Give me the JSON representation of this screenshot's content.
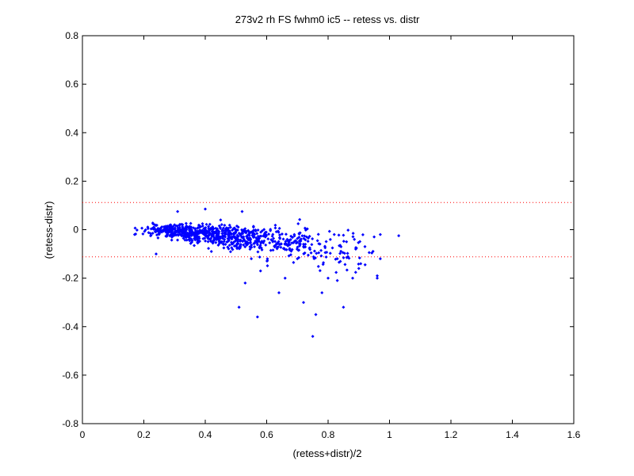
{
  "chart_data": {
    "type": "scatter",
    "title": "273v2 rh FS fwhm0 ic5 -- retess vs. distr",
    "xlabel": "(retess+distr)/2",
    "ylabel": "(retess-distr)",
    "xlim": [
      0,
      1.6
    ],
    "ylim": [
      -0.8,
      0.8
    ],
    "xticks": [
      0,
      0.2,
      0.4,
      0.6,
      0.8,
      1,
      1.2,
      1.4,
      1.6
    ],
    "yticks": [
      -0.8,
      -0.6,
      -0.4,
      -0.2,
      0,
      0.2,
      0.4,
      0.6,
      0.8
    ],
    "xtick_labels": [
      "0",
      "0.2",
      "0.4",
      "0.6",
      "0.8",
      "1",
      "1.2",
      "1.4",
      "1.6"
    ],
    "ytick_labels": [
      "-0.8",
      "-0.6",
      "-0.4",
      "-0.2",
      "0",
      "0.2",
      "0.4",
      "0.6",
      "0.8"
    ],
    "grid": false,
    "reference_lines": [
      {
        "y": 0.112,
        "style": "dotted",
        "color": "#ff0000"
      },
      {
        "y": -0.112,
        "style": "dotted",
        "color": "#ff0000"
      }
    ],
    "marker_color": "#0000ff",
    "approximate_point_count": 900,
    "representative_points": [
      {
        "x": 0.17,
        "y": -0.02
      },
      {
        "x": 0.31,
        "y": 0.075
      },
      {
        "x": 0.4,
        "y": 0.085
      },
      {
        "x": 0.52,
        "y": 0.075
      },
      {
        "x": 0.3,
        "y": 0.02
      },
      {
        "x": 0.45,
        "y": 0.04
      },
      {
        "x": 0.24,
        "y": -0.1
      },
      {
        "x": 0.42,
        "y": -0.09
      },
      {
        "x": 0.55,
        "y": -0.12
      },
      {
        "x": 0.53,
        "y": -0.22
      },
      {
        "x": 0.58,
        "y": -0.17
      },
      {
        "x": 0.51,
        "y": -0.32
      },
      {
        "x": 0.57,
        "y": -0.36
      },
      {
        "x": 0.64,
        "y": -0.26
      },
      {
        "x": 0.66,
        "y": -0.2
      },
      {
        "x": 0.72,
        "y": -0.3
      },
      {
        "x": 0.75,
        "y": -0.44
      },
      {
        "x": 0.76,
        "y": -0.35
      },
      {
        "x": 0.78,
        "y": -0.26
      },
      {
        "x": 0.8,
        "y": -0.2
      },
      {
        "x": 0.83,
        "y": -0.21
      },
      {
        "x": 0.85,
        "y": -0.32
      },
      {
        "x": 0.88,
        "y": -0.2
      },
      {
        "x": 0.9,
        "y": -0.16
      },
      {
        "x": 0.83,
        "y": -0.12
      },
      {
        "x": 0.89,
        "y": -0.08
      },
      {
        "x": 0.92,
        "y": -0.07
      },
      {
        "x": 0.95,
        "y": -0.03
      },
      {
        "x": 0.97,
        "y": -0.02
      },
      {
        "x": 0.97,
        "y": -0.12
      },
      {
        "x": 0.96,
        "y": -0.19
      },
      {
        "x": 0.96,
        "y": -0.2
      },
      {
        "x": 1.03,
        "y": -0.025
      },
      {
        "x": 0.69,
        "y": -0.02
      },
      {
        "x": 0.72,
        "y": -0.06
      },
      {
        "x": 0.82,
        "y": -0.02
      },
      {
        "x": 0.86,
        "y": -0.05
      },
      {
        "x": 0.62,
        "y": -0.05
      },
      {
        "x": 0.7,
        "y": -0.12
      }
    ],
    "dense_clusters": [
      {
        "x_center": 0.3,
        "x_spread": 0.07,
        "y_center": -0.005,
        "y_spread": 0.018,
        "n": 220
      },
      {
        "x_center": 0.42,
        "x_spread": 0.08,
        "y_center": -0.02,
        "y_spread": 0.028,
        "n": 260
      },
      {
        "x_center": 0.55,
        "x_spread": 0.08,
        "y_center": -0.04,
        "y_spread": 0.04,
        "n": 200
      },
      {
        "x_center": 0.7,
        "x_spread": 0.08,
        "y_center": -0.06,
        "y_spread": 0.05,
        "n": 110
      },
      {
        "x_center": 0.86,
        "x_spread": 0.06,
        "y_center": -0.09,
        "y_spread": 0.06,
        "n": 50
      }
    ]
  }
}
